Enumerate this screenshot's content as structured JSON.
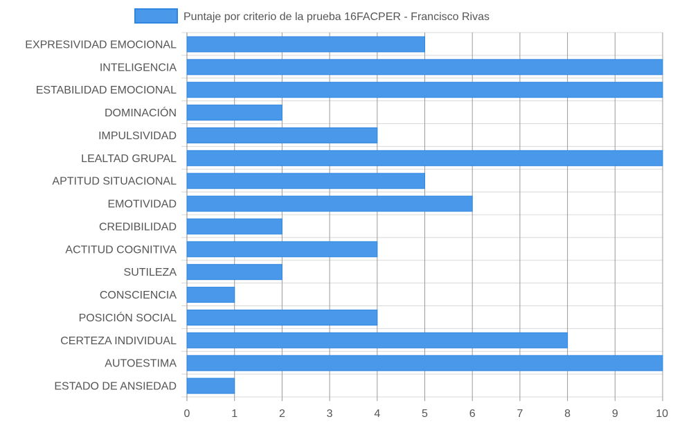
{
  "chart_data": {
    "type": "bar",
    "orientation": "horizontal",
    "categories": [
      "EXPRESIVIDAD EMOCIONAL",
      "INTELIGENCIA",
      "ESTABILIDAD EMOCIONAL",
      "DOMINACIÓN",
      "IMPULSIVIDAD",
      "LEALTAD GRUPAL",
      "APTITUD SITUACIONAL",
      "EMOTIVIDAD",
      "CREDIBILIDAD",
      "ACTITUD COGNITIVA",
      "SUTILEZA",
      "CONSCIENCIA",
      "POSICIÓN SOCIAL",
      "CERTEZA INDIVIDUAL",
      "AUTOESTIMA",
      "ESTADO DE ANSIEDAD"
    ],
    "series": [
      {
        "name": "Puntaje por criterio de la prueba 16FACPER - Francisco Rivas",
        "values": [
          5,
          10,
          10,
          2,
          4,
          10,
          5,
          6,
          2,
          4,
          2,
          1,
          4,
          8,
          10,
          1
        ]
      }
    ],
    "xlim": [
      0,
      10
    ],
    "xticks": [
      "0",
      "1",
      "2",
      "3",
      "4",
      "5",
      "6",
      "7",
      "8",
      "9",
      "10"
    ],
    "grid": true,
    "legend_position": "top",
    "colors": {
      "bar": "#4a98ea",
      "bar_border": "#2f86e0",
      "grid": "#d8d8d8",
      "grid_vertical": "#999999"
    }
  }
}
